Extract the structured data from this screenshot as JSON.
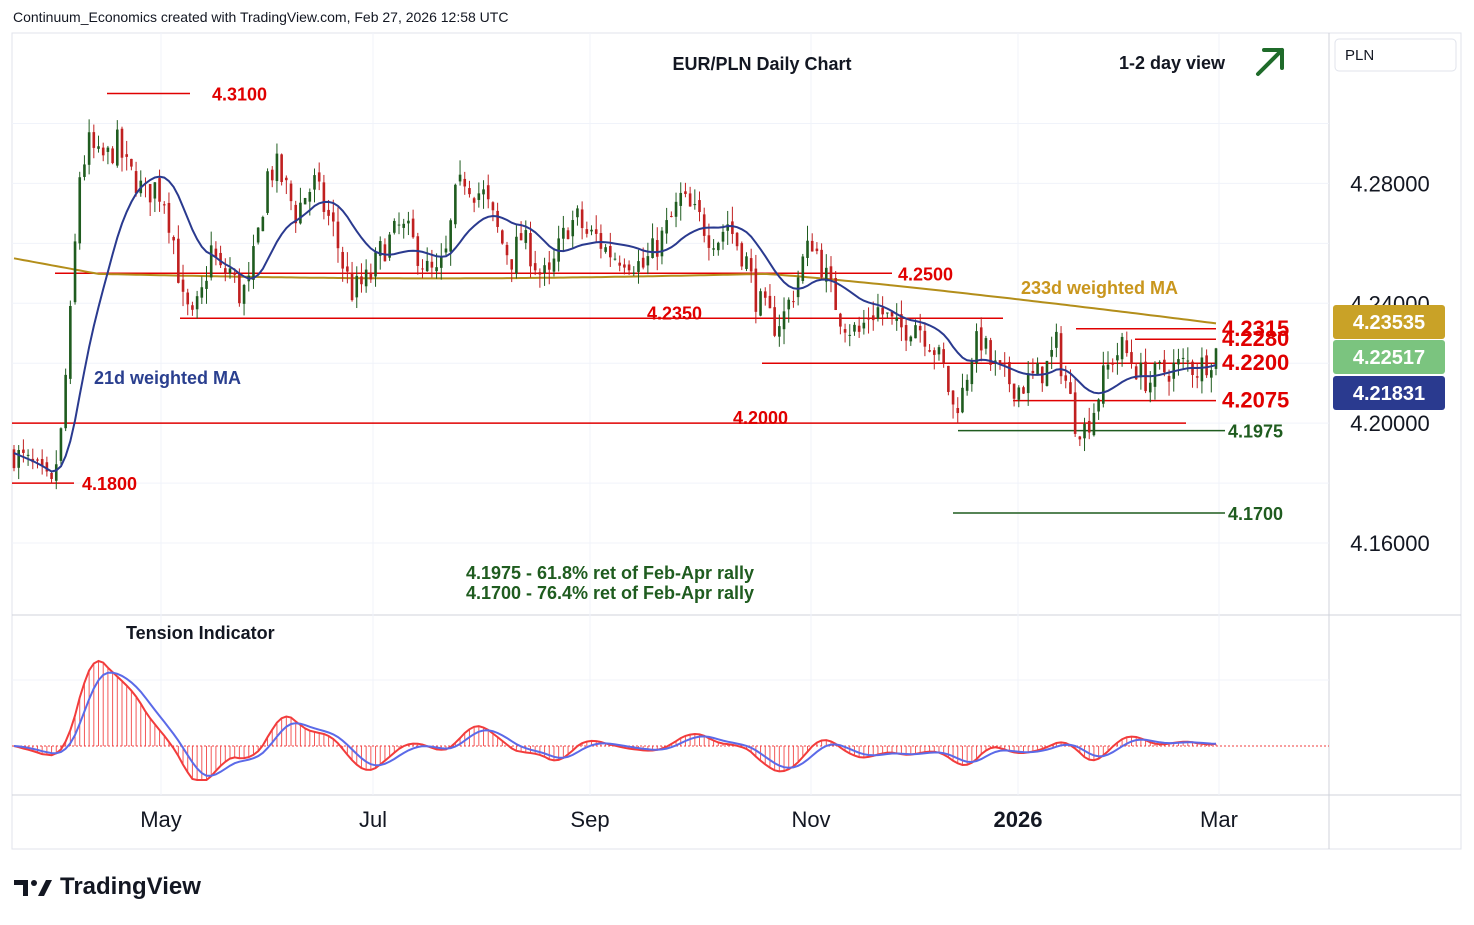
{
  "header": "Continuum_Economics created with TradingView.com, Feb 27, 2026 12:58 UTC",
  "logo_text": "TradingView",
  "currency_label": "PLN",
  "chart_data": {
    "type": "candlestick",
    "title": "EUR/PLN Daily Chart",
    "view_label": "1-2 day view",
    "view_direction": "up",
    "x_ticks": [
      "May",
      "Jul",
      "Sep",
      "Nov",
      "2026",
      "Mar"
    ],
    "y_ticks": [
      "4.28000",
      "4.24000",
      "4.20000",
      "4.16000"
    ],
    "y_range": [
      4.152,
      4.3105
    ],
    "price_badges": [
      {
        "value": "4.23535",
        "color": "#c9a227",
        "text_color": "#ffffff"
      },
      {
        "value": "4.22517",
        "color": "#7bc47f",
        "text_color": "#ffffff"
      },
      {
        "value": "4.21831",
        "color": "#2a3a8f",
        "text_color": "#ffffff"
      }
    ],
    "levels": [
      {
        "label": "4.3100",
        "value": 4.31,
        "color": "#e00000"
      },
      {
        "label": "4.2500",
        "value": 4.25,
        "color": "#e00000"
      },
      {
        "label": "4.2350",
        "value": 4.235,
        "color": "#e00000"
      },
      {
        "label": "4.2315",
        "value": 4.2315,
        "color": "#e00000"
      },
      {
        "label": "4.2280",
        "value": 4.228,
        "color": "#e00000"
      },
      {
        "label": "4.2200",
        "value": 4.22,
        "color": "#e00000"
      },
      {
        "label": "4.2075",
        "value": 4.2075,
        "color": "#e00000"
      },
      {
        "label": "4.2000",
        "value": 4.2,
        "color": "#e00000"
      },
      {
        "label": "4.1975",
        "value": 4.1975,
        "color": "#1f5c1f"
      },
      {
        "label": "4.1800",
        "value": 4.18,
        "color": "#e00000"
      },
      {
        "label": "4.1700",
        "value": 4.17,
        "color": "#1f5c1f"
      }
    ],
    "annotations": {
      "ma21": "21d weighted MA",
      "ma233": "233d weighted MA",
      "note1": "4.1975 - 61.8% ret of Feb-Apr rally",
      "note2": "4.1700 - 76.4% ret of Feb-Apr rally",
      "indicator": "Tension Indicator"
    },
    "colors": {
      "up": "#1f5c1f",
      "down": "#c02020",
      "ma21": "#2a3a8f",
      "ma233": "#b38e1a",
      "indicator_main": "#f23c3c",
      "indicator_signal": "#5b6ae8",
      "arrow": "#1f6b2a"
    },
    "series_key_prices": [
      [
        0,
        4.19
      ],
      [
        4,
        4.185
      ],
      [
        8,
        4.178
      ],
      [
        10,
        4.196
      ],
      [
        12,
        4.235
      ],
      [
        14,
        4.283
      ],
      [
        16,
        4.293
      ],
      [
        18,
        4.288
      ],
      [
        20,
        4.289
      ],
      [
        22,
        4.293
      ],
      [
        24,
        4.285
      ],
      [
        26,
        4.281
      ],
      [
        28,
        4.276
      ],
      [
        30,
        4.279
      ],
      [
        32,
        4.275
      ],
      [
        34,
        4.261
      ],
      [
        36,
        4.24
      ],
      [
        38,
        4.234
      ],
      [
        40,
        4.243
      ],
      [
        42,
        4.258
      ],
      [
        44,
        4.25
      ],
      [
        46,
        4.251
      ],
      [
        48,
        4.243
      ],
      [
        50,
        4.246
      ],
      [
        52,
        4.263
      ],
      [
        54,
        4.283
      ],
      [
        56,
        4.285
      ],
      [
        58,
        4.278
      ],
      [
        60,
        4.27
      ],
      [
        62,
        4.276
      ],
      [
        64,
        4.28
      ],
      [
        66,
        4.272
      ],
      [
        68,
        4.265
      ],
      [
        70,
        4.253
      ],
      [
        72,
        4.244
      ],
      [
        74,
        4.246
      ],
      [
        76,
        4.249
      ],
      [
        78,
        4.257
      ],
      [
        80,
        4.261
      ],
      [
        82,
        4.265
      ],
      [
        84,
        4.263
      ],
      [
        86,
        4.257
      ],
      [
        88,
        4.251
      ],
      [
        90,
        4.249
      ],
      [
        92,
        4.256
      ],
      [
        94,
        4.275
      ],
      [
        96,
        4.282
      ],
      [
        98,
        4.278
      ],
      [
        100,
        4.276
      ],
      [
        102,
        4.268
      ],
      [
        104,
        4.26
      ],
      [
        106,
        4.255
      ],
      [
        108,
        4.262
      ],
      [
        110,
        4.257
      ],
      [
        112,
        4.25
      ],
      [
        114,
        4.248
      ],
      [
        116,
        4.258
      ],
      [
        118,
        4.266
      ],
      [
        120,
        4.268
      ],
      [
        122,
        4.263
      ],
      [
        124,
        4.262
      ],
      [
        126,
        4.258
      ],
      [
        128,
        4.256
      ],
      [
        130,
        4.256
      ],
      [
        132,
        4.254
      ],
      [
        134,
        4.252
      ],
      [
        136,
        4.257
      ],
      [
        138,
        4.262
      ],
      [
        140,
        4.268
      ],
      [
        142,
        4.275
      ],
      [
        144,
        4.271
      ],
      [
        146,
        4.268
      ],
      [
        148,
        4.263
      ],
      [
        150,
        4.262
      ],
      [
        152,
        4.267
      ],
      [
        154,
        4.26
      ],
      [
        156,
        4.254
      ],
      [
        158,
        4.242
      ],
      [
        160,
        4.237
      ],
      [
        162,
        4.233
      ],
      [
        164,
        4.236
      ],
      [
        166,
        4.244
      ],
      [
        168,
        4.254
      ],
      [
        170,
        4.261
      ],
      [
        172,
        4.253
      ],
      [
        174,
        4.244
      ],
      [
        176,
        4.236
      ],
      [
        178,
        4.232
      ],
      [
        180,
        4.23
      ],
      [
        182,
        4.236
      ],
      [
        184,
        4.238
      ],
      [
        186,
        4.235
      ],
      [
        188,
        4.231
      ],
      [
        190,
        4.232
      ],
      [
        192,
        4.234
      ],
      [
        194,
        4.23
      ],
      [
        196,
        4.225
      ],
      [
        198,
        4.218
      ],
      [
        200,
        4.205
      ],
      [
        202,
        4.21
      ],
      [
        204,
        4.224
      ],
      [
        206,
        4.228
      ],
      [
        208,
        4.22
      ],
      [
        210,
        4.216
      ],
      [
        212,
        4.214
      ],
      [
        214,
        4.212
      ],
      [
        216,
        4.214
      ],
      [
        218,
        4.216
      ],
      [
        220,
        4.219
      ],
      [
        222,
        4.226
      ],
      [
        224,
        4.214
      ],
      [
        226,
        4.201
      ],
      [
        228,
        4.198
      ],
      [
        230,
        4.205
      ],
      [
        232,
        4.215
      ],
      [
        234,
        4.222
      ],
      [
        236,
        4.225
      ],
      [
        238,
        4.221
      ],
      [
        240,
        4.216
      ],
      [
        242,
        4.214
      ],
      [
        244,
        4.217
      ],
      [
        246,
        4.218
      ],
      [
        248,
        4.219
      ],
      [
        250,
        4.22
      ],
      [
        252,
        4.218
      ],
      [
        254,
        4.221
      ],
      [
        256,
        4.224
      ]
    ]
  }
}
